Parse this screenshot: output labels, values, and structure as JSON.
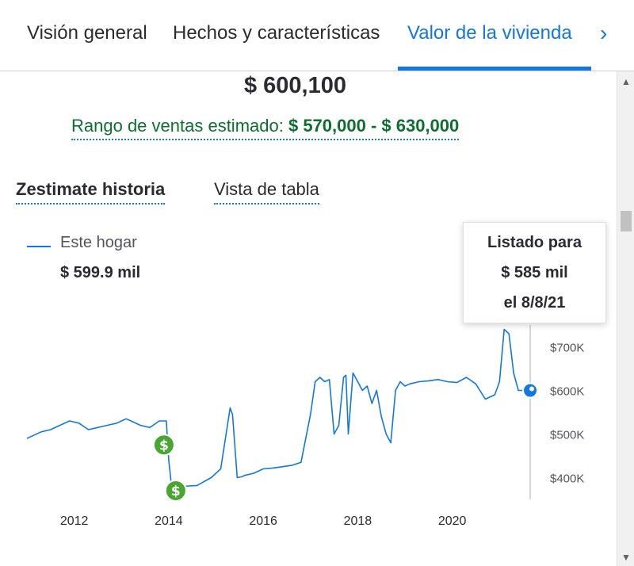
{
  "tabs": {
    "items": [
      {
        "label": "Visión general",
        "active": false
      },
      {
        "label": "Hechos y características",
        "active": false
      },
      {
        "label": "Valor de la vivienda",
        "active": true
      }
    ],
    "next_icon": "chevron-right-icon"
  },
  "zestimate": {
    "value": "$ 600,100",
    "range_label": "Rango de ventas estimado:",
    "range_value": "$ 570,000 - $ 630,000"
  },
  "view_toggle": {
    "history_label": "Zestimate historia",
    "table_label": "Vista de tabla"
  },
  "legend": {
    "name": "Este hogar",
    "value": "$ 599.9 mil"
  },
  "tooltip": {
    "line1": "Listado para",
    "line2": "$ 585 mil",
    "line3": "el 8/8/21"
  },
  "colors": {
    "accent": "#1277e1",
    "range_green": "#0d6e2f",
    "sold_marker": "#4aa532"
  },
  "chart_data": {
    "type": "line",
    "series": [
      {
        "name": "Este hogar",
        "x": [
          2011.0,
          2011.1,
          2011.3,
          2011.5,
          2011.7,
          2011.9,
          2012.1,
          2012.3,
          2012.5,
          2012.7,
          2012.9,
          2013.0,
          2013.1,
          2013.2,
          2013.4,
          2013.6,
          2013.8,
          2013.95,
          2014.0,
          2014.05,
          2014.1,
          2014.3,
          2014.6,
          2014.9,
          2015.1,
          2015.3,
          2015.35,
          2015.45,
          2015.55,
          2015.6,
          2015.8,
          2016.0,
          2016.2,
          2016.4,
          2016.6,
          2016.8,
          2017.0,
          2017.1,
          2017.2,
          2017.3,
          2017.4,
          2017.5,
          2017.6,
          2017.7,
          2017.75,
          2017.8,
          2017.9,
          2018.0,
          2018.1,
          2018.2,
          2018.3,
          2018.4,
          2018.5,
          2018.6,
          2018.7,
          2018.8,
          2018.9,
          2019.0,
          2019.1,
          2019.3,
          2019.5,
          2019.7,
          2019.9,
          2020.1,
          2020.3,
          2020.5,
          2020.7,
          2020.9,
          2021.0,
          2021.1,
          2021.2,
          2021.3,
          2021.4,
          2021.5,
          2021.6,
          2021.65
        ],
        "y": [
          490,
          495,
          505,
          510,
          520,
          530,
          525,
          510,
          515,
          520,
          525,
          530,
          535,
          530,
          520,
          515,
          530,
          530,
          440,
          390,
          380,
          380,
          382,
          400,
          420,
          560,
          545,
          400,
          402,
          405,
          410,
          420,
          422,
          425,
          428,
          435,
          545,
          620,
          630,
          620,
          625,
          500,
          520,
          630,
          635,
          500,
          640,
          620,
          600,
          610,
          570,
          600,
          540,
          500,
          480,
          600,
          620,
          610,
          615,
          620,
          622,
          625,
          620,
          618,
          630,
          615,
          580,
          590,
          620,
          740,
          730,
          640,
          600,
          599.9,
          600,
          600
        ]
      }
    ],
    "x_ticks": [
      "2012",
      "2014",
      "2016",
      "2018",
      "2020"
    ],
    "y_ticks": [
      "$700K",
      "$600K",
      "$500K",
      "$400K"
    ],
    "xlim": [
      2011.0,
      2021.7
    ],
    "ylim": [
      350,
      750
    ],
    "sold_markers": [
      {
        "x": 2013.9,
        "y": 475
      },
      {
        "x": 2014.15,
        "y": 370
      }
    ],
    "listed_marker": {
      "x": 2021.65,
      "y": 599.9
    },
    "grid": false
  }
}
